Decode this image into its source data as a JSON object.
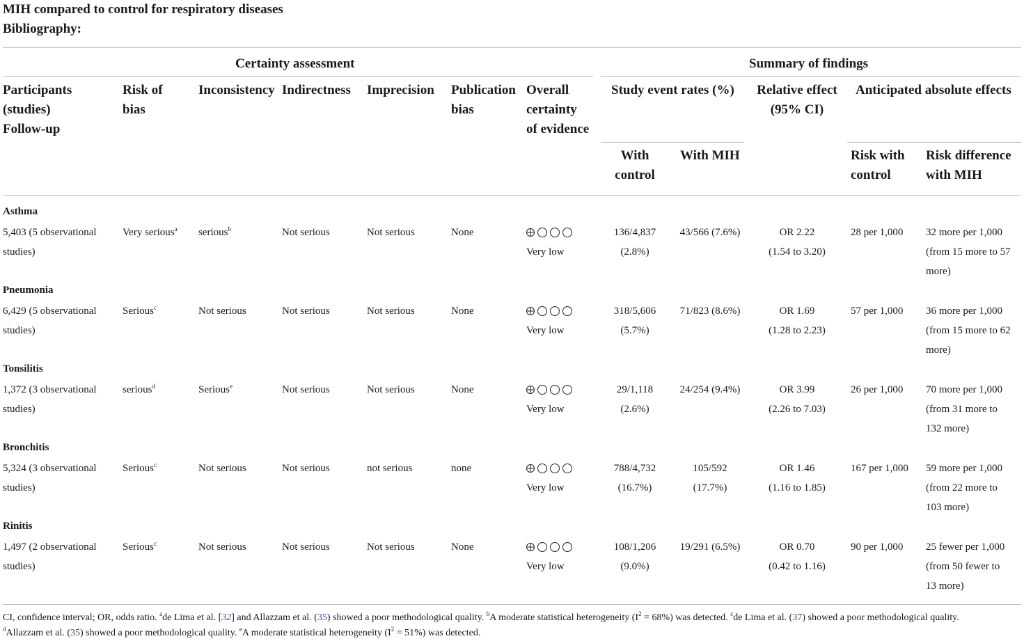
{
  "page": {
    "title": "MIH compared to control for respiratory diseases",
    "bibliography": "Bibliography:"
  },
  "groups": {
    "certainty": "Certainty assessment",
    "summary": "Summary of findings"
  },
  "headers": {
    "participants": [
      "Participants",
      "(studies)",
      "Follow-up"
    ],
    "risk_of_bias": [
      "Risk of",
      "bias"
    ],
    "inconsistency": "Inconsistency",
    "indirectness": "Indirectness",
    "imprecision": "Imprecision",
    "publication_bias": [
      "Publication",
      "bias"
    ],
    "overall": [
      "Overall",
      "certainty",
      "of evidence"
    ],
    "study_event_rates": "Study event rates (%)",
    "relative_effect": [
      "Relative effect",
      "(95% CI)"
    ],
    "anticipated": "Anticipated absolute effects",
    "with_control": [
      "With",
      "control"
    ],
    "with_mih": "With MIH",
    "risk_with_control": [
      "Risk with",
      "control"
    ],
    "risk_difference": [
      "Risk difference",
      "with MIH"
    ]
  },
  "certainty_symbol": "⊕◯◯◯",
  "rows": [
    {
      "condition": "Asthma",
      "participants": [
        "5,403 (5 observational",
        "studies)"
      ],
      "risk_of_bias": "Very serious",
      "risk_of_bias_sup": "a",
      "inconsistency": "serious",
      "inconsistency_sup": "b",
      "indirectness": "Not serious",
      "imprecision": "Not serious",
      "publication_bias": "None",
      "certainty_label": "Very low",
      "with_control": [
        "136/4,837",
        "(2.8%)"
      ],
      "with_mih": [
        "43/566 (7.6%)"
      ],
      "relative_effect": [
        "OR 2.22",
        "(1.54 to 3.20)"
      ],
      "risk_with_control": "28 per 1,000",
      "risk_difference": [
        "32 more per 1,000",
        "(from 15 more to 57",
        "more)"
      ]
    },
    {
      "condition": "Pneumonia",
      "participants": [
        "6,429 (5 observational",
        "studies)"
      ],
      "risk_of_bias": "Serious",
      "risk_of_bias_sup": "c",
      "inconsistency": "Not serious",
      "inconsistency_sup": "",
      "indirectness": "Not serious",
      "imprecision": "Not serious",
      "publication_bias": "None",
      "certainty_label": "Very low",
      "with_control": [
        "318/5,606",
        "(5.7%)"
      ],
      "with_mih": [
        "71/823 (8.6%)"
      ],
      "relative_effect": [
        "OR 1.69",
        "(1.28 to 2.23)"
      ],
      "risk_with_control": "57 per 1,000",
      "risk_difference": [
        "36 more per 1,000",
        "(from 15 more to 62",
        "more)"
      ]
    },
    {
      "condition": "Tonsilitis",
      "participants": [
        "1,372 (3 observational",
        "studies)"
      ],
      "risk_of_bias": "serious",
      "risk_of_bias_sup": "d",
      "inconsistency": "Serious",
      "inconsistency_sup": "e",
      "indirectness": "Not serious",
      "imprecision": "Not serious",
      "publication_bias": "None",
      "certainty_label": "Very low",
      "with_control": [
        "29/1,118",
        "(2.6%)"
      ],
      "with_mih": [
        "24/254 (9.4%)"
      ],
      "relative_effect": [
        "OR 3.99",
        "(2.26 to 7.03)"
      ],
      "risk_with_control": "26 per 1,000",
      "risk_difference": [
        "70 more per 1,000",
        "(from 31 more to",
        "132 more)"
      ]
    },
    {
      "condition": "Bronchitis",
      "participants": [
        "5,324 (3 observational",
        "studies)"
      ],
      "risk_of_bias": "Serious",
      "risk_of_bias_sup": "c",
      "inconsistency": "Not serious",
      "inconsistency_sup": "",
      "indirectness": "Not serious",
      "imprecision": "not serious",
      "publication_bias": "none",
      "certainty_label": "Very low",
      "with_control": [
        "788/4,732",
        "(16.7%)"
      ],
      "with_mih": [
        "105/592",
        "(17.7%)"
      ],
      "relative_effect": [
        "OR 1.46",
        "(1.16 to 1.85)"
      ],
      "risk_with_control": "167 per 1,000",
      "risk_difference": [
        "59 more per 1,000",
        "(from 22 more to",
        "103 more)"
      ]
    },
    {
      "condition": "Rinitis",
      "participants": [
        "1,497 (2 observational",
        "studies)"
      ],
      "risk_of_bias": "Serious",
      "risk_of_bias_sup": "c",
      "inconsistency": "Not serious",
      "inconsistency_sup": "",
      "indirectness": "Not serious",
      "imprecision": "Not serious",
      "publication_bias": "None",
      "certainty_label": "Very low",
      "with_control": [
        "108/1,206",
        "(9.0%)"
      ],
      "with_mih": [
        "19/291 (6.5%)"
      ],
      "relative_effect": [
        "OR 0.70",
        "(0.42 to 1.16)"
      ],
      "risk_with_control": "90 per 1,000",
      "risk_difference": [
        "25 fewer per 1,000",
        "(from 50 fewer to",
        "13 more)"
      ]
    }
  ],
  "footnote": {
    "line1_a": "CI, confidence interval; OR, odds ratio. ",
    "sup_a": "a",
    "line1_b": "de Lima et al. [",
    "ref32": "32",
    "line1_c": "] and Allazzam et al. (",
    "ref35": "35",
    "line1_d": ") showed a poor methodological quality. ",
    "sup_b": "b",
    "line1_e": "A moderate statistical heterogeneity (I",
    "sq": "2",
    "line1_f": " = 68%) was detected. ",
    "sup_c": "c",
    "line1_g": "de Lima et al. (",
    "ref37": "37",
    "line1_h": ") showed a poor methodological quality.",
    "sup_d": "d",
    "line2_a": "Allazzam et al. (",
    "ref35b": "35",
    "line2_b": ") showed a poor methodological quality. ",
    "sup_e": "e",
    "line2_c": "A moderate statistical heterogeneity (I",
    "sq2": "2",
    "line2_d": " = 51%) was detected."
  }
}
